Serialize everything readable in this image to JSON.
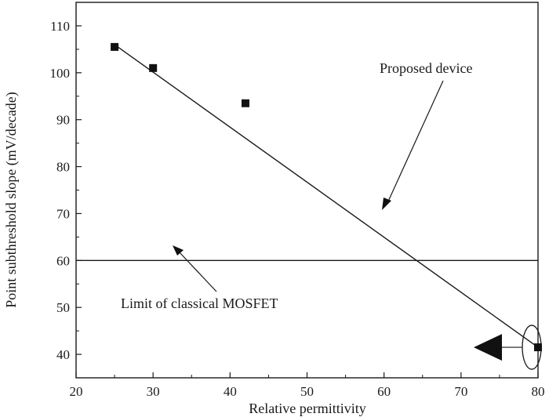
{
  "chart_data": {
    "type": "scatter",
    "title": "",
    "xlabel": "Relative permittivity",
    "ylabel": "Point subthreshold slope (mV/decade)",
    "xlim": [
      20,
      80
    ],
    "ylim": [
      35,
      115
    ],
    "x_ticks": [
      20,
      30,
      40,
      50,
      60,
      70,
      80
    ],
    "y_ticks": [
      40,
      50,
      60,
      70,
      80,
      90,
      100,
      110
    ],
    "grid": false,
    "points": [
      {
        "x": 25,
        "y": 105.5
      },
      {
        "x": 30,
        "y": 101
      },
      {
        "x": 42,
        "y": 93.5
      },
      {
        "x": 80,
        "y": 41.5
      }
    ],
    "fit_line": {
      "x": [
        25,
        80
      ],
      "y": [
        106,
        41.5
      ]
    },
    "reference_line": {
      "y": 60
    },
    "annotations": [
      {
        "text": "Proposed device"
      },
      {
        "text": "Limit of classical MOSFET"
      }
    ]
  }
}
